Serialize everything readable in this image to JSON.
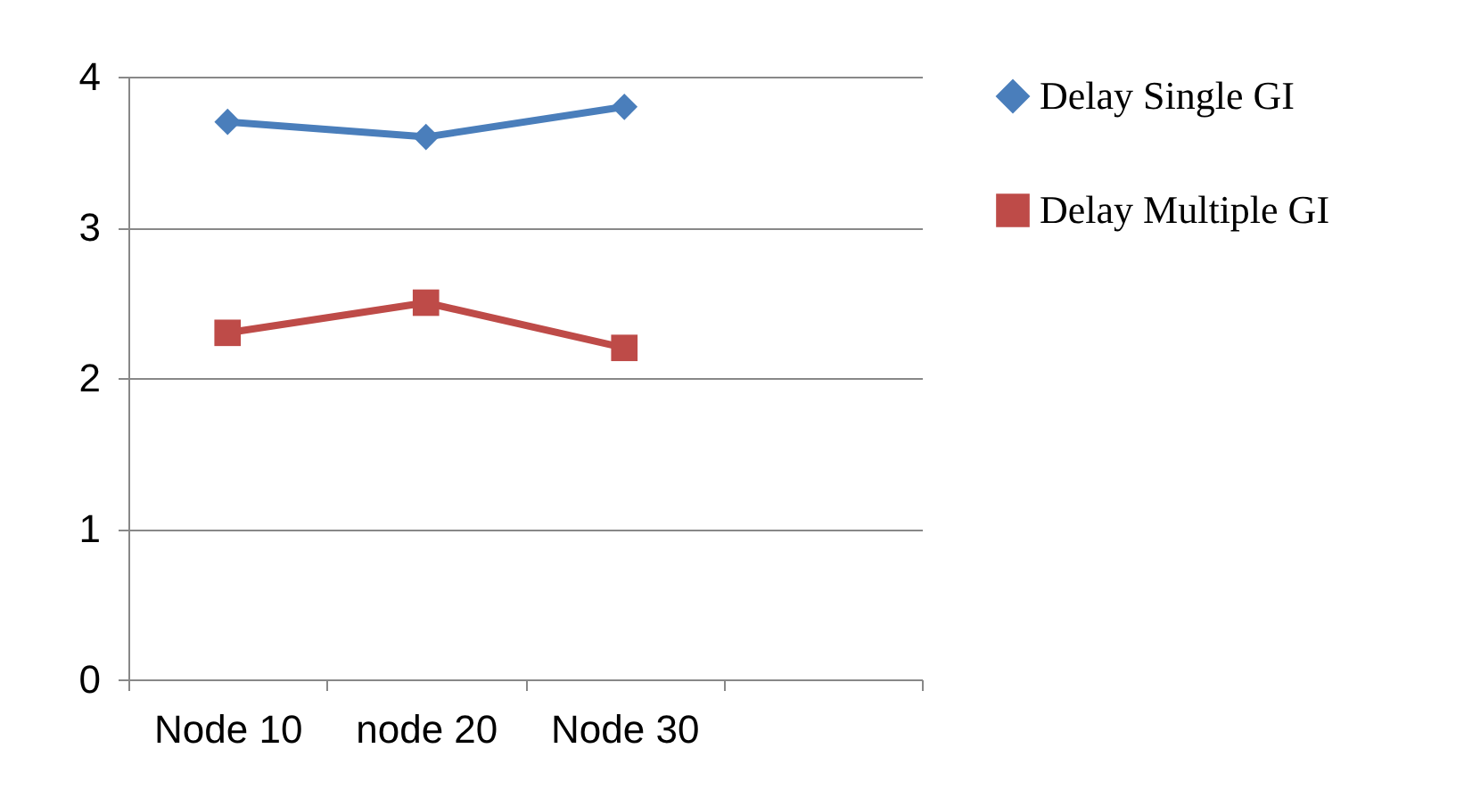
{
  "chart_data": {
    "type": "line",
    "categories": [
      "Node 10",
      "node 20",
      "Node 30",
      null
    ],
    "series": [
      {
        "name": "Delay Single GI",
        "color": "#4a7ebb",
        "marker": "diamond",
        "values": [
          3.7,
          3.6,
          3.8,
          null
        ]
      },
      {
        "name": "Delay Multiple GI",
        "color": "#be4b48",
        "marker": "square",
        "values": [
          2.3,
          2.5,
          2.2,
          null
        ]
      }
    ],
    "ylim": [
      0,
      4
    ],
    "yticks": [
      0,
      1,
      2,
      3,
      4
    ],
    "grid": "y",
    "legend": "right"
  }
}
